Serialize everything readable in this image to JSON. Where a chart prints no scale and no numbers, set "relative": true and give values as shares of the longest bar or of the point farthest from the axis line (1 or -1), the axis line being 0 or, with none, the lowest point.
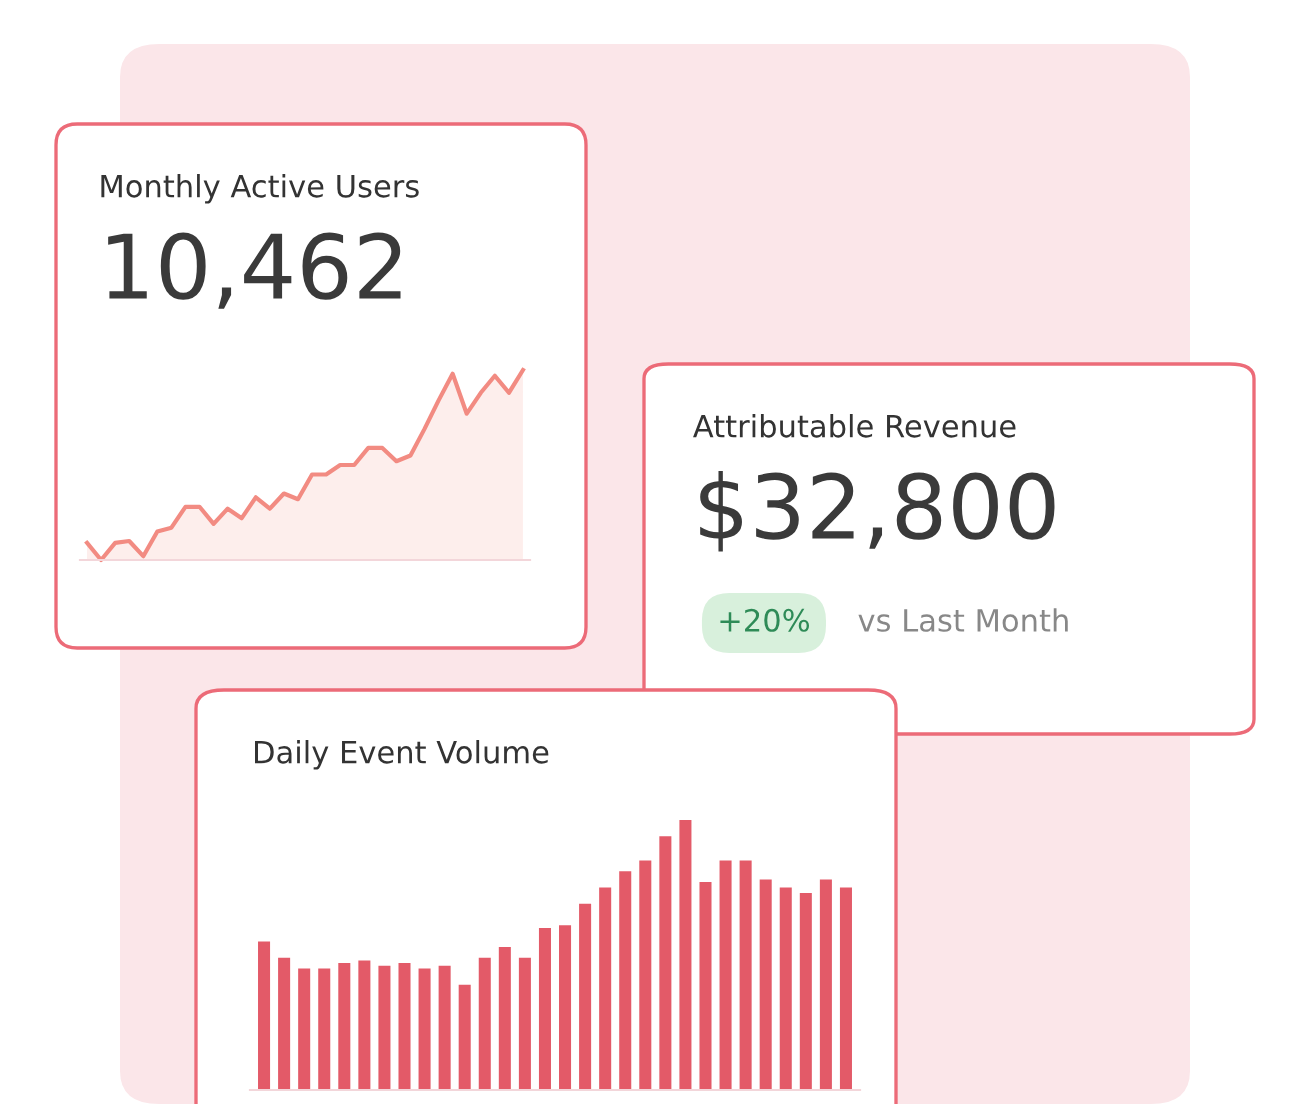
{
  "chart_data": [
    {
      "type": "area",
      "title": "Monthly Active Users",
      "annotations": [
        "10,462"
      ],
      "relative": true,
      "color": "#f28b82",
      "categories": [
        null,
        null,
        null,
        null,
        null,
        null,
        null,
        null,
        null,
        null,
        null,
        null,
        null,
        null,
        null,
        null,
        null,
        null,
        null,
        null,
        null,
        null,
        null,
        null,
        null,
        null,
        null,
        null,
        null,
        null,
        null,
        null
      ],
      "values": [
        0.09,
        0,
        0.09,
        0.1,
        0.02,
        0.15,
        0.17,
        0.28,
        0.28,
        0.19,
        0.27,
        0.22,
        0.33,
        0.27,
        0.35,
        0.32,
        0.45,
        0.45,
        0.5,
        0.5,
        0.59,
        0.59,
        0.52,
        0.55,
        0.69,
        0.84,
        0.98,
        0.77,
        0.88,
        0.97,
        0.88,
        1
      ]
    },
    {
      "type": "other",
      "title": "Attributable Revenue",
      "annotations": [
        "$32,800",
        "+20%",
        "vs Last Month"
      ]
    },
    {
      "type": "bar",
      "title": "Daily Event Volume",
      "relative": true,
      "color": "#e35a68",
      "categories": [
        null,
        null,
        null,
        null,
        null,
        null,
        null,
        null,
        null,
        null,
        null,
        null,
        null,
        null,
        null,
        null,
        null,
        null,
        null,
        null,
        null,
        null,
        null,
        null,
        null,
        null,
        null,
        null,
        null,
        null
      ],
      "values": [
        0.55,
        0.49,
        0.45,
        0.45,
        0.47,
        0.48,
        0.46,
        0.47,
        0.45,
        0.46,
        0.39,
        0.49,
        0.53,
        0.49,
        0.6,
        0.61,
        0.69,
        0.75,
        0.81,
        0.85,
        0.94,
        1,
        0.77,
        0.85,
        0.85,
        0.78,
        0.75,
        0.73,
        0.78,
        0.75
      ]
    }
  ]
}
